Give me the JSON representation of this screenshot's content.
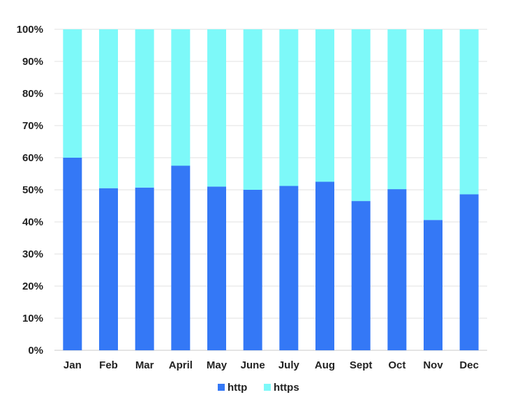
{
  "chart_data": {
    "type": "bar",
    "stacked": true,
    "percent_stacked": true,
    "categories": [
      "Jan",
      "Feb",
      "Mar",
      "April",
      "May",
      "June",
      "July",
      "Aug",
      "Sept",
      "Oct",
      "Nov",
      "Dec"
    ],
    "series": [
      {
        "name": "http",
        "color": "#3478F6",
        "values": [
          60,
          50.5,
          50.7,
          57.5,
          51,
          50,
          51.2,
          52.5,
          46.5,
          50.2,
          40.6,
          48.6
        ]
      },
      {
        "name": "https",
        "color": "#7DF9F9",
        "values": [
          40,
          49.5,
          49.3,
          42.5,
          49,
          50,
          48.8,
          47.5,
          53.5,
          49.8,
          59.4,
          51.4
        ]
      }
    ],
    "ylim": [
      0,
      100
    ],
    "yticks": [
      "0%",
      "10%",
      "20%",
      "30%",
      "40%",
      "50%",
      "60%",
      "70%",
      "80%",
      "90%",
      "100%"
    ],
    "grid": true,
    "legend_position": "bottom-center"
  }
}
